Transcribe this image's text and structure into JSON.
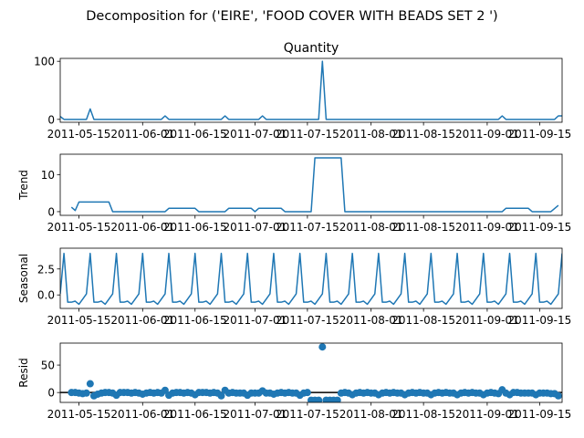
{
  "figure": {
    "suptitle": "Decomposition for ('EIRE', 'FOOD COVER WITH BEADS SET 2 ')"
  },
  "chart_data": [
    {
      "type": "line",
      "title": "Quantity",
      "ylabel": "",
      "ylim": [
        -5,
        105
      ],
      "yticks": [
        0,
        100
      ],
      "xlim": [
        "2011-05-10",
        "2011-09-21"
      ],
      "xticks": [
        "2011-05-15",
        "2011-06-01",
        "2011-06-15",
        "2011-07-01",
        "2011-07-15",
        "2011-08-01",
        "2011-08-15",
        "2011-09-01",
        "2011-09-15"
      ],
      "color": "#1f77b4",
      "points": [
        [
          "2011-05-10",
          5
        ],
        [
          "2011-05-11",
          0
        ],
        [
          "2011-05-17",
          0
        ],
        [
          "2011-05-18",
          18
        ],
        [
          "2011-05-19",
          0
        ],
        [
          "2011-06-06",
          0
        ],
        [
          "2011-06-07",
          6
        ],
        [
          "2011-06-08",
          0
        ],
        [
          "2011-06-22",
          0
        ],
        [
          "2011-06-23",
          6
        ],
        [
          "2011-06-24",
          0
        ],
        [
          "2011-07-02",
          0
        ],
        [
          "2011-07-03",
          6
        ],
        [
          "2011-07-04",
          0
        ],
        [
          "2011-07-18",
          0
        ],
        [
          "2011-07-19",
          100
        ],
        [
          "2011-07-20",
          0
        ],
        [
          "2011-09-04",
          0
        ],
        [
          "2011-09-05",
          6
        ],
        [
          "2011-09-06",
          0
        ],
        [
          "2011-09-19",
          0
        ],
        [
          "2011-09-20",
          6
        ],
        [
          "2011-09-21",
          6
        ]
      ]
    },
    {
      "type": "line",
      "title": "",
      "ylabel": "Trend",
      "ylim": [
        -1,
        15.5
      ],
      "yticks": [
        0,
        10
      ],
      "xlim": [
        "2011-05-10",
        "2011-09-21"
      ],
      "xticks": [
        "2011-05-15",
        "2011-06-01",
        "2011-06-15",
        "2011-07-01",
        "2011-07-15",
        "2011-08-01",
        "2011-08-15",
        "2011-09-01",
        "2011-09-15"
      ],
      "color": "#1f77b4",
      "points": [
        [
          "2011-05-13",
          1.2
        ],
        [
          "2011-05-14",
          0.3
        ],
        [
          "2011-05-15",
          2.6
        ],
        [
          "2011-05-23",
          2.6
        ],
        [
          "2011-05-24",
          0
        ],
        [
          "2011-06-07",
          0
        ],
        [
          "2011-06-08",
          0.9
        ],
        [
          "2011-06-15",
          0.9
        ],
        [
          "2011-06-16",
          0
        ],
        [
          "2011-06-23",
          0
        ],
        [
          "2011-06-24",
          0.9
        ],
        [
          "2011-06-30",
          0.9
        ],
        [
          "2011-07-01",
          0
        ],
        [
          "2011-07-02",
          0.9
        ],
        [
          "2011-07-08",
          0.9
        ],
        [
          "2011-07-09",
          0
        ],
        [
          "2011-07-16",
          0
        ],
        [
          "2011-07-17",
          14.5
        ],
        [
          "2011-07-24",
          14.5
        ],
        [
          "2011-07-25",
          0
        ],
        [
          "2011-09-05",
          0
        ],
        [
          "2011-09-06",
          0.9
        ],
        [
          "2011-09-12",
          0.9
        ],
        [
          "2011-09-13",
          0
        ],
        [
          "2011-09-18",
          0
        ],
        [
          "2011-09-20",
          1.7
        ]
      ]
    },
    {
      "type": "line",
      "title": "",
      "ylabel": "Seasonal",
      "ylim": [
        -1.3,
        4.5
      ],
      "yticks": [
        -0.0,
        2.5
      ],
      "ytick_labels": [
        "0.0",
        "2.5"
      ],
      "xlim": [
        "2011-05-10",
        "2011-09-21"
      ],
      "xticks": [
        "2011-05-15",
        "2011-06-01",
        "2011-06-15",
        "2011-07-01",
        "2011-07-15",
        "2011-08-01",
        "2011-08-15",
        "2011-09-01",
        "2011-09-15"
      ],
      "color": "#1f77b4",
      "start": "2011-05-10",
      "end": "2011-09-21",
      "period": 7,
      "pattern": [
        -0.7,
        -0.7,
        -0.6,
        -0.9,
        -0.4,
        0.1,
        4.0
      ],
      "first_phase": 5
    },
    {
      "type": "scatter",
      "title": "",
      "ylabel": "Resid",
      "ylim": [
        -18,
        90
      ],
      "yticks": [
        0,
        50
      ],
      "xlim": [
        "2011-05-10",
        "2011-09-21"
      ],
      "xticks": [
        "2011-05-15",
        "2011-06-01",
        "2011-06-15",
        "2011-07-01",
        "2011-07-15",
        "2011-08-01",
        "2011-08-15",
        "2011-09-01",
        "2011-09-15"
      ],
      "color": "#1f77b4",
      "zero_line": true,
      "points": [
        [
          "2011-05-13",
          0
        ],
        [
          "2011-05-14",
          0
        ],
        [
          "2011-05-15",
          -1
        ],
        [
          "2011-05-16",
          -2
        ],
        [
          "2011-05-17",
          -1
        ],
        [
          "2011-05-18",
          16
        ],
        [
          "2011-05-19",
          -6
        ],
        [
          "2011-05-20",
          -3
        ],
        [
          "2011-05-21",
          -1
        ],
        [
          "2011-05-22",
          0
        ],
        [
          "2011-05-23",
          0
        ],
        [
          "2011-05-24",
          -1
        ],
        [
          "2011-05-25",
          -5
        ],
        [
          "2011-05-26",
          0
        ],
        [
          "2011-05-27",
          0
        ],
        [
          "2011-05-28",
          0
        ],
        [
          "2011-05-29",
          -1
        ],
        [
          "2011-05-30",
          0
        ],
        [
          "2011-05-31",
          -1
        ],
        [
          "2011-06-01",
          -3
        ],
        [
          "2011-06-02",
          -1
        ],
        [
          "2011-06-03",
          0
        ],
        [
          "2011-06-04",
          -1
        ],
        [
          "2011-06-05",
          0
        ],
        [
          "2011-06-06",
          -1
        ],
        [
          "2011-06-07",
          4
        ],
        [
          "2011-06-08",
          -5
        ],
        [
          "2011-06-09",
          -1
        ],
        [
          "2011-06-10",
          0
        ],
        [
          "2011-06-11",
          0
        ],
        [
          "2011-06-12",
          -1
        ],
        [
          "2011-06-13",
          0
        ],
        [
          "2011-06-14",
          -1
        ],
        [
          "2011-06-15",
          -4
        ],
        [
          "2011-06-16",
          0
        ],
        [
          "2011-06-17",
          0
        ],
        [
          "2011-06-18",
          0
        ],
        [
          "2011-06-19",
          -1
        ],
        [
          "2011-06-20",
          0
        ],
        [
          "2011-06-21",
          -1
        ],
        [
          "2011-06-22",
          -6
        ],
        [
          "2011-06-23",
          4
        ],
        [
          "2011-06-24",
          -1
        ],
        [
          "2011-06-25",
          0
        ],
        [
          "2011-06-26",
          -1
        ],
        [
          "2011-06-27",
          -1
        ],
        [
          "2011-06-28",
          -1
        ],
        [
          "2011-06-29",
          -5
        ],
        [
          "2011-06-30",
          -1
        ],
        [
          "2011-07-01",
          -1
        ],
        [
          "2011-07-02",
          -1
        ],
        [
          "2011-07-03",
          3
        ],
        [
          "2011-07-04",
          -1
        ],
        [
          "2011-07-05",
          -1
        ],
        [
          "2011-07-06",
          -3
        ],
        [
          "2011-07-07",
          -1
        ],
        [
          "2011-07-08",
          0
        ],
        [
          "2011-07-09",
          -1
        ],
        [
          "2011-07-10",
          0
        ],
        [
          "2011-07-11",
          -1
        ],
        [
          "2011-07-12",
          -1
        ],
        [
          "2011-07-13",
          -5
        ],
        [
          "2011-07-14",
          -1
        ],
        [
          "2011-07-15",
          0
        ],
        [
          "2011-07-16",
          -14
        ],
        [
          "2011-07-17",
          -14
        ],
        [
          "2011-07-18",
          -14
        ],
        [
          "2011-07-19",
          83
        ],
        [
          "2011-07-20",
          -14
        ],
        [
          "2011-07-21",
          -14
        ],
        [
          "2011-07-22",
          -14
        ],
        [
          "2011-07-23",
          -14
        ],
        [
          "2011-07-24",
          -1
        ],
        [
          "2011-07-25",
          0
        ],
        [
          "2011-07-26",
          -1
        ],
        [
          "2011-07-27",
          -4
        ],
        [
          "2011-07-28",
          -1
        ],
        [
          "2011-07-29",
          0
        ],
        [
          "2011-07-30",
          -1
        ],
        [
          "2011-07-31",
          0
        ],
        [
          "2011-08-01",
          -1
        ],
        [
          "2011-08-02",
          -1
        ],
        [
          "2011-08-03",
          -4
        ],
        [
          "2011-08-04",
          -1
        ],
        [
          "2011-08-05",
          0
        ],
        [
          "2011-08-06",
          -1
        ],
        [
          "2011-08-07",
          0
        ],
        [
          "2011-08-08",
          -1
        ],
        [
          "2011-08-09",
          -1
        ],
        [
          "2011-08-10",
          -4
        ],
        [
          "2011-08-11",
          -1
        ],
        [
          "2011-08-12",
          0
        ],
        [
          "2011-08-13",
          -1
        ],
        [
          "2011-08-14",
          0
        ],
        [
          "2011-08-15",
          -1
        ],
        [
          "2011-08-16",
          -1
        ],
        [
          "2011-08-17",
          -4
        ],
        [
          "2011-08-18",
          -1
        ],
        [
          "2011-08-19",
          0
        ],
        [
          "2011-08-20",
          -1
        ],
        [
          "2011-08-21",
          0
        ],
        [
          "2011-08-22",
          -1
        ],
        [
          "2011-08-23",
          -1
        ],
        [
          "2011-08-24",
          -4
        ],
        [
          "2011-08-25",
          -1
        ],
        [
          "2011-08-26",
          0
        ],
        [
          "2011-08-27",
          -1
        ],
        [
          "2011-08-28",
          0
        ],
        [
          "2011-08-29",
          -1
        ],
        [
          "2011-08-30",
          -1
        ],
        [
          "2011-08-31",
          -4
        ],
        [
          "2011-09-01",
          -1
        ],
        [
          "2011-09-02",
          0
        ],
        [
          "2011-09-03",
          -1
        ],
        [
          "2011-09-04",
          -2
        ],
        [
          "2011-09-05",
          5
        ],
        [
          "2011-09-06",
          -1
        ],
        [
          "2011-09-07",
          -4
        ],
        [
          "2011-09-08",
          0
        ],
        [
          "2011-09-09",
          0
        ],
        [
          "2011-09-10",
          -1
        ],
        [
          "2011-09-11",
          -1
        ],
        [
          "2011-09-12",
          -1
        ],
        [
          "2011-09-13",
          -1
        ],
        [
          "2011-09-14",
          -4
        ],
        [
          "2011-09-15",
          -1
        ],
        [
          "2011-09-16",
          -1
        ],
        [
          "2011-09-17",
          -1
        ],
        [
          "2011-09-18",
          -2
        ],
        [
          "2011-09-19",
          -2
        ],
        [
          "2011-09-20",
          -6
        ]
      ]
    }
  ]
}
